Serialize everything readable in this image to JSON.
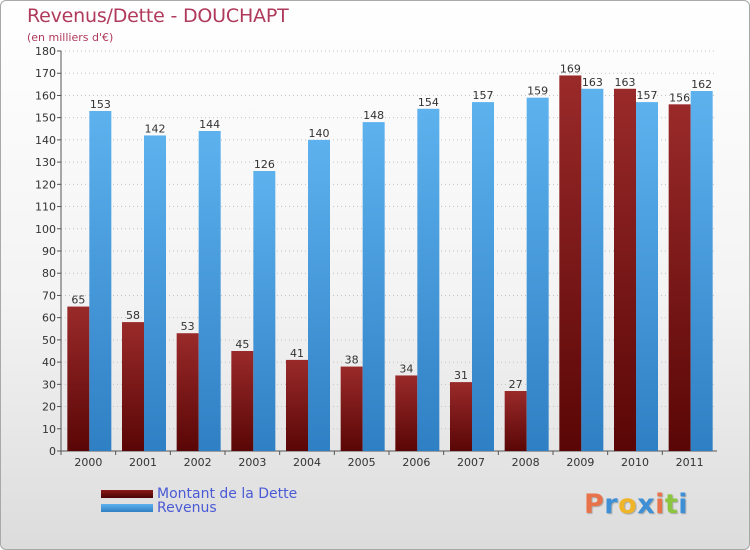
{
  "chart_data": {
    "type": "bar",
    "title": "Revenus/Dette - DOUCHAPT",
    "subtitle": "(en milliers d'€)",
    "categories": [
      "2000",
      "2001",
      "2002",
      "2003",
      "2004",
      "2005",
      "2006",
      "2007",
      "2008",
      "2009",
      "2010",
      "2011"
    ],
    "series": [
      {
        "name": "Montant de la Dette",
        "color": "#8b1a1a",
        "values": [
          65,
          58,
          53,
          45,
          41,
          38,
          34,
          31,
          27,
          169,
          163,
          156
        ]
      },
      {
        "name": "Revenus",
        "color": "#4fa6e8",
        "values": [
          153,
          142,
          144,
          126,
          140,
          148,
          154,
          157,
          159,
          163,
          157,
          162
        ]
      }
    ],
    "ylim": [
      0,
      180
    ],
    "ytick_step": 10,
    "grid": true,
    "legend_position": "bottom-left"
  },
  "logo": {
    "text": "Proxiti",
    "colors": [
      "#e8734a",
      "#3d8fd6",
      "#f0b429",
      "#3d8fd6",
      "#e8734a",
      "#8cc63f",
      "#3d8fd6"
    ]
  }
}
